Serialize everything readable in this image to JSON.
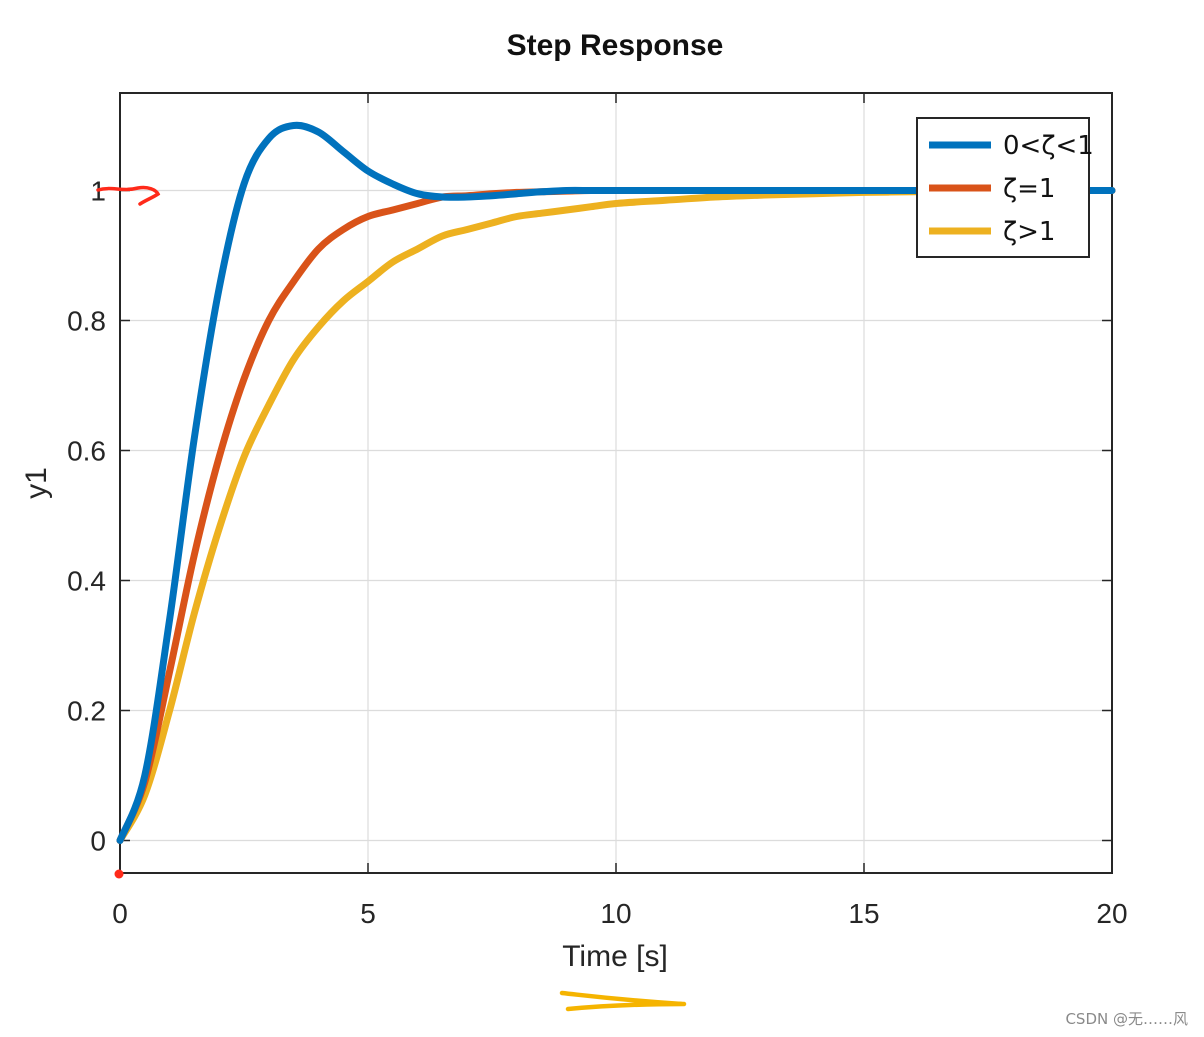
{
  "chart_data": {
    "type": "line",
    "title": "Step Response",
    "xlabel": "Time [s]",
    "ylabel": "y1",
    "xlim": [
      0,
      20
    ],
    "ylim": [
      -0.05,
      1.15
    ],
    "xticks": [
      0,
      5,
      10,
      15,
      20
    ],
    "yticks": [
      0,
      0.2,
      0.4,
      0.6,
      0.8,
      1
    ],
    "xtick_labels": [
      "0",
      "5",
      "10",
      "15",
      "20"
    ],
    "ytick_labels": [
      "0",
      "0.2",
      "0.4",
      "0.6",
      "0.8",
      "1"
    ],
    "grid": true,
    "legend_position": "top-right",
    "x": [
      0,
      0.5,
      1,
      1.5,
      2,
      2.5,
      3,
      3.5,
      4,
      4.5,
      5,
      5.5,
      6,
      6.5,
      7,
      7.5,
      8,
      8.5,
      9,
      9.5,
      10,
      11,
      12,
      13,
      14,
      15,
      16,
      17,
      18,
      19,
      20
    ],
    "series": [
      {
        "name": "0<ζ<1",
        "color": "#0072BD",
        "values": [
          0,
          0.1,
          0.34,
          0.62,
          0.85,
          1.01,
          1.08,
          1.1,
          1.09,
          1.06,
          1.03,
          1.01,
          0.995,
          0.99,
          0.99,
          0.992,
          0.995,
          0.998,
          1.0,
          1.0,
          1.0,
          1.0,
          1.0,
          1.0,
          1.0,
          1.0,
          1.0,
          1.0,
          1.0,
          1.0,
          1.0
        ]
      },
      {
        "name": "ζ=1",
        "color": "#D95319",
        "values": [
          0,
          0.09,
          0.26,
          0.44,
          0.59,
          0.71,
          0.8,
          0.86,
          0.91,
          0.94,
          0.96,
          0.97,
          0.98,
          0.99,
          0.992,
          0.995,
          0.997,
          0.998,
          0.999,
          1.0,
          1.0,
          1.0,
          1.0,
          1.0,
          1.0,
          1.0,
          1.0,
          1.0,
          1.0,
          1.0,
          1.0
        ]
      },
      {
        "name": "ζ>1",
        "color": "#EDB120",
        "values": [
          0,
          0.07,
          0.2,
          0.35,
          0.48,
          0.59,
          0.67,
          0.74,
          0.79,
          0.83,
          0.86,
          0.89,
          0.91,
          0.93,
          0.94,
          0.95,
          0.96,
          0.965,
          0.97,
          0.975,
          0.98,
          0.985,
          0.99,
          0.993,
          0.995,
          0.997,
          0.998,
          0.999,
          1.0,
          1.0,
          1.0
        ]
      }
    ]
  },
  "watermark": "CSDN @无……风",
  "annotation_colors": {
    "red_mark": "#ff2a1a",
    "yellow_mark": "#f5b400"
  }
}
